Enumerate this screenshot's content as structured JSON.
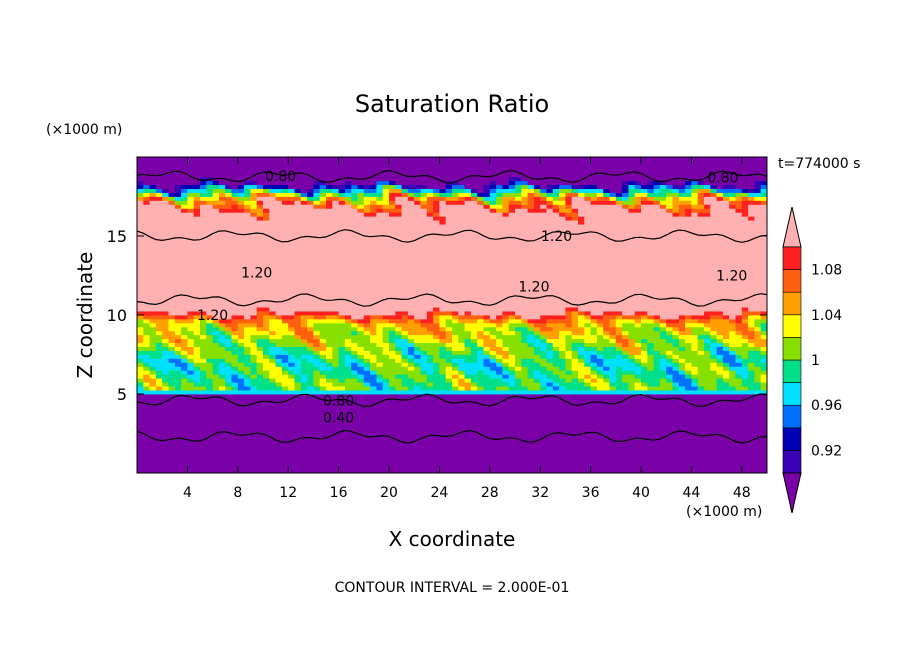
{
  "chart_data": {
    "type": "heatmap",
    "title": "Saturation Ratio",
    "xlabel": "X coordinate",
    "ylabel": "Z coordinate",
    "x_unit": "(×1000 m)",
    "y_unit": "(×1000 m)",
    "time_label": "t=774000 s",
    "footer": "CONTOUR INTERVAL = 2.000E-01",
    "xlim": [
      0,
      50
    ],
    "ylim": [
      0,
      20
    ],
    "x_ticks": [
      4,
      8,
      12,
      16,
      20,
      24,
      28,
      32,
      36,
      40,
      44,
      48
    ],
    "y_ticks": [
      5,
      10,
      15
    ],
    "colorbar": {
      "levels": [
        0.9,
        0.92,
        0.94,
        0.96,
        0.98,
        1.0,
        1.02,
        1.04,
        1.06,
        1.08,
        1.1
      ],
      "labels": [
        {
          "value": 0.92,
          "text": "0.92"
        },
        {
          "value": 0.96,
          "text": "0.96"
        },
        {
          "value": 1.0,
          "text": "1"
        },
        {
          "value": 1.04,
          "text": "1.04"
        },
        {
          "value": 1.08,
          "text": "1.08"
        }
      ],
      "colors": [
        "#7a00a8",
        "#3b00b4",
        "#0000b4",
        "#0070ff",
        "#00e0ff",
        "#00e08a",
        "#88e000",
        "#ffff00",
        "#ffa000",
        "#ff6010",
        "#ff2020",
        "#ffb0b0"
      ]
    },
    "profile": [
      {
        "z": 0,
        "value": 0.3
      },
      {
        "z": 3.5,
        "value": 0.45
      },
      {
        "z": 4.8,
        "value": 0.85
      },
      {
        "z": 5.2,
        "value": 1.0
      },
      {
        "z": 7.0,
        "value": 0.99
      },
      {
        "z": 9.5,
        "value": 1.04
      },
      {
        "z": 11.0,
        "value": 1.2
      },
      {
        "z": 15.5,
        "value": 1.2
      },
      {
        "z": 17.3,
        "value": 1.06
      },
      {
        "z": 18.0,
        "value": 0.95
      },
      {
        "z": 18.8,
        "value": 0.8
      },
      {
        "z": 20,
        "value": 0.7
      }
    ],
    "contour_labels": [
      {
        "x": 11.4,
        "z": 18.8,
        "text": "0.80"
      },
      {
        "x": 46.5,
        "z": 18.7,
        "text": "0.80"
      },
      {
        "x": 33.3,
        "z": 15.0,
        "text": "1.20"
      },
      {
        "x": 9.5,
        "z": 12.7,
        "text": "1.20"
      },
      {
        "x": 31.5,
        "z": 11.8,
        "text": "1.20"
      },
      {
        "x": 47.2,
        "z": 12.5,
        "text": "1.20"
      },
      {
        "x": 6.0,
        "z": 10.0,
        "text": "1.20"
      },
      {
        "x": 16.0,
        "z": 4.6,
        "text": "0.80"
      },
      {
        "x": 16.0,
        "z": 3.5,
        "text": "0.40"
      }
    ]
  }
}
